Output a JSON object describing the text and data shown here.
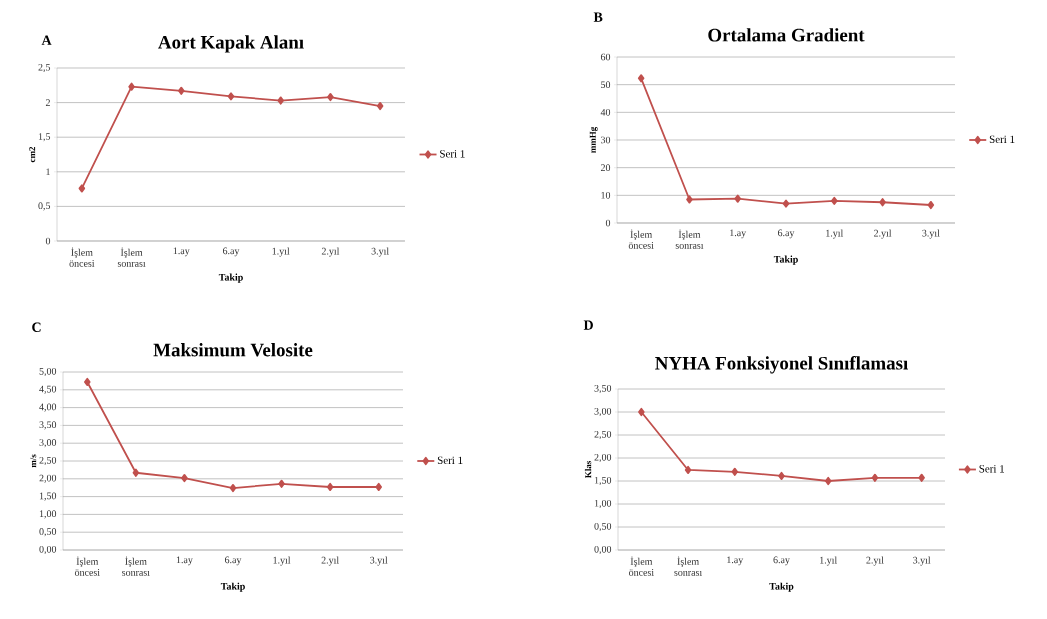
{
  "chart_data": [
    {
      "type": "line",
      "title": "Aort Kapak Alanı",
      "xlabel": "Takip",
      "ylabel": "cm2",
      "annotations": [
        "A"
      ],
      "categories": [
        "İşlem öncesi",
        "İşlem sonrası",
        "1.ay",
        "6.ay",
        "1.yıl",
        "2.yıl",
        "3.yıl"
      ],
      "series": [
        {
          "name": "Seri 1",
          "color": "#c0504d",
          "values": [
            0.76,
            2.23,
            2.17,
            2.09,
            2.03,
            2.08,
            1.95
          ]
        }
      ],
      "ylim": [
        0,
        2.5
      ],
      "yticks": [
        0,
        {
          "value": 0.5,
          "label": "0,5"
        },
        1,
        {
          "value": 1.5,
          "label": "1,5"
        },
        2,
        {
          "value": 2.5,
          "label": "2,5"
        }
      ],
      "grid": "y",
      "legend": "right",
      "marker": "diamond",
      "line_style": "solid"
    },
    {
      "type": "line",
      "title": "Ortalama Gradient",
      "xlabel": "Takip",
      "ylabel": "mmHg",
      "annotations": [
        "B"
      ],
      "categories": [
        "İşlem öncesi",
        "İşlem sonrası",
        "1.ay",
        "6.ay",
        "1.yıl",
        "2.yıl",
        "3.yıl"
      ],
      "series": [
        {
          "name": "Seri 1",
          "color": "#c0504d",
          "values": [
            52.3,
            8.5,
            8.8,
            7,
            8,
            7.5,
            6.5
          ]
        }
      ],
      "ylim": [
        0,
        60
      ],
      "yticks": [
        0,
        10,
        20,
        30,
        40,
        50,
        60
      ],
      "grid": "y",
      "legend": "right",
      "marker": "diamond",
      "line_style": "solid"
    },
    {
      "type": "line",
      "title": "Maksimum Velosite",
      "xlabel": "Takip",
      "ylabel": "m/s",
      "annotations": [
        "C"
      ],
      "categories": [
        "İşlem öncesi",
        "İşlem sonrası",
        "1.ay",
        "6.ay",
        "1.yıl",
        "2.yıl",
        "3.yıl"
      ],
      "series": [
        {
          "name": "Seri 1",
          "color": "#c0504d",
          "values": [
            4.72,
            2.17,
            2.02,
            1.74,
            1.86,
            1.77,
            1.77
          ]
        }
      ],
      "ylim": [
        0,
        5
      ],
      "yticks": [
        {
          "value": 0,
          "label": "0,00"
        },
        {
          "value": 0.5,
          "label": "0,50"
        },
        {
          "value": 1,
          "label": "1,00"
        },
        {
          "value": 1.5,
          "label": "1,50"
        },
        {
          "value": 2,
          "label": "2,00"
        },
        {
          "value": 2.5,
          "label": "2,50"
        },
        {
          "value": 3,
          "label": "3,00"
        },
        {
          "value": 3.5,
          "label": "3,50"
        },
        {
          "value": 4,
          "label": "4,00"
        },
        {
          "value": 4.5,
          "label": "4,50"
        },
        {
          "value": 5,
          "label": "5,00"
        }
      ],
      "grid": "y",
      "legend": "right",
      "marker": "diamond",
      "line_style": "solid"
    },
    {
      "type": "line",
      "title": "NYHA Fonksiyonel Sınıflaması",
      "xlabel": "Takip",
      "ylabel": "Klas",
      "annotations": [
        "D"
      ],
      "categories": [
        "İşlem öncesi",
        "İşlem sonrası",
        "1.ay",
        "6.ay",
        "1.yıl",
        "2.yıl",
        "3.yıl"
      ],
      "series": [
        {
          "name": "Seri 1",
          "color": "#c0504d",
          "values": [
            3.0,
            1.74,
            1.7,
            1.61,
            1.5,
            1.57,
            1.57
          ]
        }
      ],
      "ylim": [
        0,
        3.5
      ],
      "yticks": [
        {
          "value": 0,
          "label": "0,00"
        },
        {
          "value": 0.5,
          "label": "0,50"
        },
        {
          "value": 1,
          "label": "1,00"
        },
        {
          "value": 1.5,
          "label": "1,50"
        },
        {
          "value": 2,
          "label": "2,00"
        },
        {
          "value": 2.5,
          "label": "2,50"
        },
        {
          "value": 3,
          "label": "3,00"
        },
        {
          "value": 3.5,
          "label": "3,50"
        }
      ],
      "grid": "y",
      "legend": "right",
      "marker": "diamond",
      "line_style": "solid"
    }
  ]
}
